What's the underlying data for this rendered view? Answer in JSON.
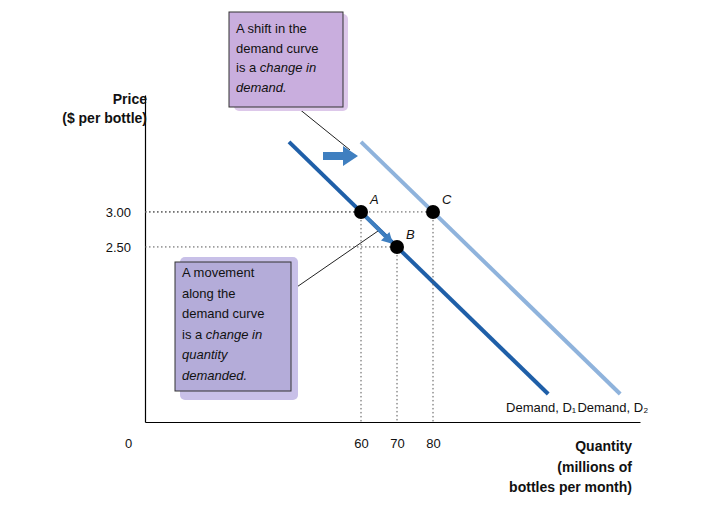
{
  "chart_data": {
    "type": "line",
    "xlabel": [
      "Quantity",
      "(millions of",
      "bottles per month)"
    ],
    "ylabel": [
      "Price",
      "($ per bottle)"
    ],
    "xlim": [
      0,
      137.5
    ],
    "ylim": [
      0,
      4.67
    ],
    "xticks": [
      0,
      60,
      70,
      80
    ],
    "yticks": [
      {
        "value": 2.5,
        "label": "2.50"
      },
      {
        "value": 3,
        "label": "3.00"
      }
    ],
    "grid": false,
    "series": [
      {
        "name": "Demand, D₁",
        "color": "#1f5fa8",
        "x": [
          40,
          112
        ],
        "values": [
          4.0,
          0.4
        ]
      },
      {
        "name": "Demand, D₂",
        "color": "#8fb3dc",
        "x": [
          60,
          132
        ],
        "values": [
          4.0,
          0.4
        ]
      },
      {
        "type": "scatter",
        "color": "#000000",
        "labels": [
          "A",
          "B",
          "C"
        ],
        "x": [
          60,
          70,
          80
        ],
        "values": [
          3,
          2.5,
          3
        ]
      }
    ],
    "annotations": [
      {
        "text": "A shift in the demand curve is a",
        "emphasis": "change in demand."
      },
      {
        "text": "A movement along the demand curve is a",
        "emphasis": "change in quantity demanded."
      }
    ]
  }
}
